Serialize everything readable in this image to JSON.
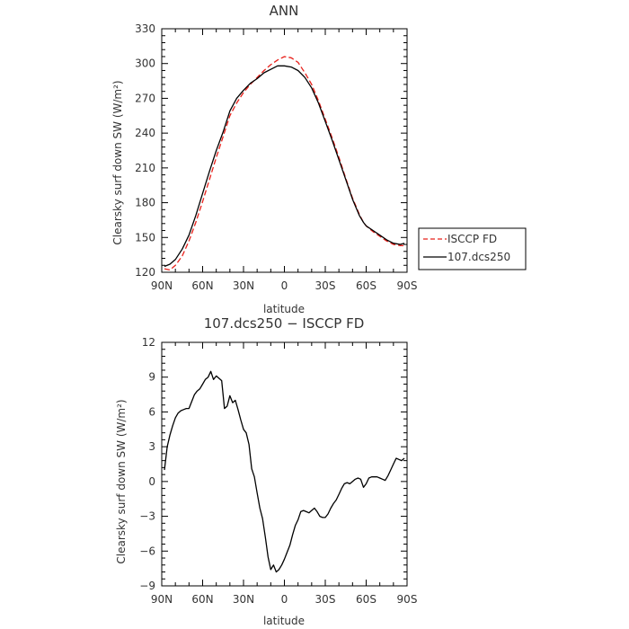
{
  "chart_data": [
    {
      "type": "line",
      "title": "ANN",
      "xlabel": "latitude",
      "ylabel": "Clearsky surf down SW (W/m²)",
      "xlim": [
        90,
        -90
      ],
      "ylim": [
        120,
        330
      ],
      "x_ticks": [
        90,
        60,
        30,
        0,
        -30,
        -60,
        -90
      ],
      "x_tick_labels": [
        "90N",
        "60N",
        "30N",
        "0",
        "30S",
        "60S",
        "90S"
      ],
      "y_ticks": [
        120,
        150,
        180,
        210,
        240,
        270,
        300,
        330
      ],
      "y_tick_labels": [
        "120",
        "150",
        "180",
        "210",
        "240",
        "270",
        "300",
        "330"
      ],
      "legend_position": "right",
      "series": [
        {
          "name": "ISCCP FD",
          "color": "#e8201a",
          "style": "dashed",
          "x": [
            88,
            84,
            80,
            75,
            70,
            65,
            60,
            55,
            50,
            45,
            40,
            35,
            30,
            25,
            20,
            15,
            10,
            5,
            0,
            -5,
            -10,
            -15,
            -20,
            -25,
            -30,
            -35,
            -40,
            -45,
            -50,
            -55,
            -58,
            -60,
            -65,
            -70,
            -75,
            -80,
            -85,
            -88
          ],
          "y": [
            123,
            122,
            126,
            134,
            147,
            163,
            181,
            200,
            219,
            237,
            255,
            266,
            275,
            282,
            288,
            294,
            299,
            303,
            306,
            305,
            301,
            292,
            282,
            268,
            252,
            236,
            219,
            201,
            184,
            170,
            163,
            160,
            155,
            151,
            147,
            144,
            143,
            143
          ]
        },
        {
          "name": "107.dcs250",
          "color": "#000000",
          "style": "solid",
          "x": [
            88,
            84,
            80,
            75,
            70,
            65,
            60,
            55,
            50,
            45,
            40,
            35,
            30,
            25,
            20,
            15,
            10,
            5,
            0,
            -5,
            -10,
            -15,
            -20,
            -25,
            -30,
            -35,
            -40,
            -45,
            -50,
            -55,
            -58,
            -60,
            -65,
            -70,
            -75,
            -80,
            -85,
            -88
          ],
          "y": [
            125,
            127,
            131,
            140,
            152,
            169,
            188,
            207,
            225,
            241,
            259,
            270,
            277,
            283,
            287,
            292,
            295,
            298,
            298,
            297,
            294,
            288,
            279,
            266,
            250,
            234,
            217,
            200,
            183,
            169,
            163,
            160,
            156,
            152,
            148,
            145,
            144,
            145
          ]
        }
      ]
    },
    {
      "type": "line",
      "title": "107.dcs250 − ISCCP FD",
      "xlabel": "latitude",
      "ylabel": "Clearsky surf down SW (W/m²)",
      "xlim": [
        90,
        -90
      ],
      "ylim": [
        -9,
        12
      ],
      "x_ticks": [
        90,
        60,
        30,
        0,
        -30,
        -60,
        -90
      ],
      "x_tick_labels": [
        "90N",
        "60N",
        "30N",
        "0",
        "30S",
        "60S",
        "90S"
      ],
      "y_ticks": [
        -9,
        -6,
        -3,
        0,
        3,
        6,
        9,
        12
      ],
      "y_tick_labels": [
        "−9",
        "−6",
        "−3",
        "0",
        "3",
        "6",
        "9",
        "12"
      ],
      "series": [
        {
          "color": "#000000",
          "style": "solid",
          "x": [
            88,
            86,
            84,
            82,
            80,
            78,
            76,
            74,
            72,
            70,
            68,
            66,
            64,
            62,
            60,
            58,
            56,
            54,
            52,
            50,
            48,
            46,
            44,
            42,
            40,
            38,
            36,
            34,
            32,
            30,
            28,
            26,
            24,
            22,
            20,
            18,
            16,
            14,
            12,
            10,
            8,
            6,
            4,
            2,
            0,
            -2,
            -4,
            -6,
            -8,
            -10,
            -12,
            -14,
            -16,
            -18,
            -20,
            -22,
            -24,
            -26,
            -28,
            -30,
            -32,
            -34,
            -36,
            -38,
            -40,
            -42,
            -44,
            -46,
            -48,
            -50,
            -52,
            -54,
            -56,
            -58,
            -60,
            -62,
            -64,
            -66,
            -68,
            -70,
            -72,
            -74,
            -76,
            -78,
            -80,
            -82,
            -84,
            -86,
            -88
          ],
          "y": [
            1.0,
            3.0,
            4.0,
            4.8,
            5.5,
            5.9,
            6.1,
            6.2,
            6.3,
            6.3,
            6.9,
            7.5,
            7.8,
            8.0,
            8.4,
            8.8,
            9.0,
            9.5,
            8.8,
            9.1,
            8.9,
            8.7,
            6.3,
            6.5,
            7.4,
            6.8,
            7.0,
            6.2,
            5.3,
            4.5,
            4.2,
            3.2,
            1.1,
            0.4,
            -1.0,
            -2.3,
            -3.2,
            -4.8,
            -6.5,
            -7.6,
            -7.2,
            -7.8,
            -7.6,
            -7.2,
            -6.7,
            -6.1,
            -5.5,
            -4.6,
            -3.8,
            -3.3,
            -2.6,
            -2.5,
            -2.6,
            -2.7,
            -2.5,
            -2.3,
            -2.6,
            -3.0,
            -3.1,
            -3.1,
            -2.8,
            -2.3,
            -1.9,
            -1.6,
            -1.1,
            -0.6,
            -0.2,
            -0.1,
            -0.2,
            0.0,
            0.2,
            0.3,
            0.2,
            -0.5,
            -0.2,
            0.3,
            0.4,
            0.4,
            0.4,
            0.3,
            0.2,
            0.1,
            0.5,
            1.0,
            1.5,
            2.0,
            1.9,
            1.8,
            2.0
          ]
        }
      ]
    }
  ],
  "legend": {
    "items": [
      {
        "label": "ISCCP FD",
        "color": "#e8201a",
        "style": "dashed"
      },
      {
        "label": "107.dcs250",
        "color": "#000000",
        "style": "solid"
      }
    ]
  }
}
